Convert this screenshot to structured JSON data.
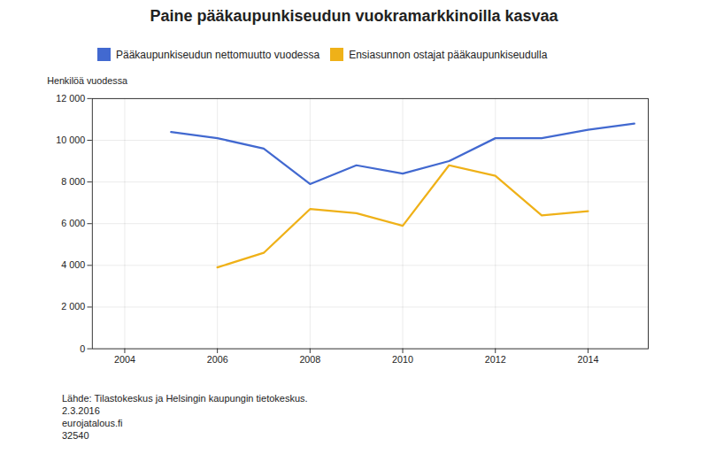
{
  "chart_data": {
    "type": "line",
    "title": "Paine pääkaupunkiseudun vuokramarkkinoilla kasvaa",
    "y_label": "Henkilöä vuodessa",
    "x": [
      2005,
      2006,
      2007,
      2008,
      2009,
      2010,
      2011,
      2012,
      2013,
      2014,
      2015
    ],
    "series": [
      {
        "name": "Pääkaupunkiseudun nettomuutto vuodessa",
        "values": [
          10400,
          10100,
          9600,
          7900,
          8800,
          8400,
          9000,
          10100,
          10100,
          10500,
          10800
        ]
      },
      {
        "name": "Ensiasunnon ostajat pääkaupunkiseudulla",
        "values": [
          null,
          3900,
          4600,
          6700,
          6500,
          5900,
          8800,
          8300,
          6400,
          6600,
          null
        ]
      }
    ],
    "xlim": [
      2003.3,
      2015.3
    ],
    "xticks": [
      2004,
      2006,
      2008,
      2010,
      2012,
      2014
    ],
    "ylim": [
      0,
      12000
    ],
    "yticks": [
      0,
      {
        "value": 2000,
        "label": "2 000"
      },
      {
        "value": 4000,
        "label": "4 000"
      },
      {
        "value": 6000,
        "label": "6 000"
      },
      {
        "value": 8000,
        "label": "8 000"
      },
      {
        "value": 10000,
        "label": "10 000"
      },
      {
        "value": 12000,
        "label": "12 000"
      }
    ],
    "grid": true,
    "annotations": [
      "Lähde: Tilastokeskus ja Helsingin kaupungin tietokeskus.",
      "2.3.2016",
      "eurojatalous.fi",
      "32540"
    ]
  }
}
